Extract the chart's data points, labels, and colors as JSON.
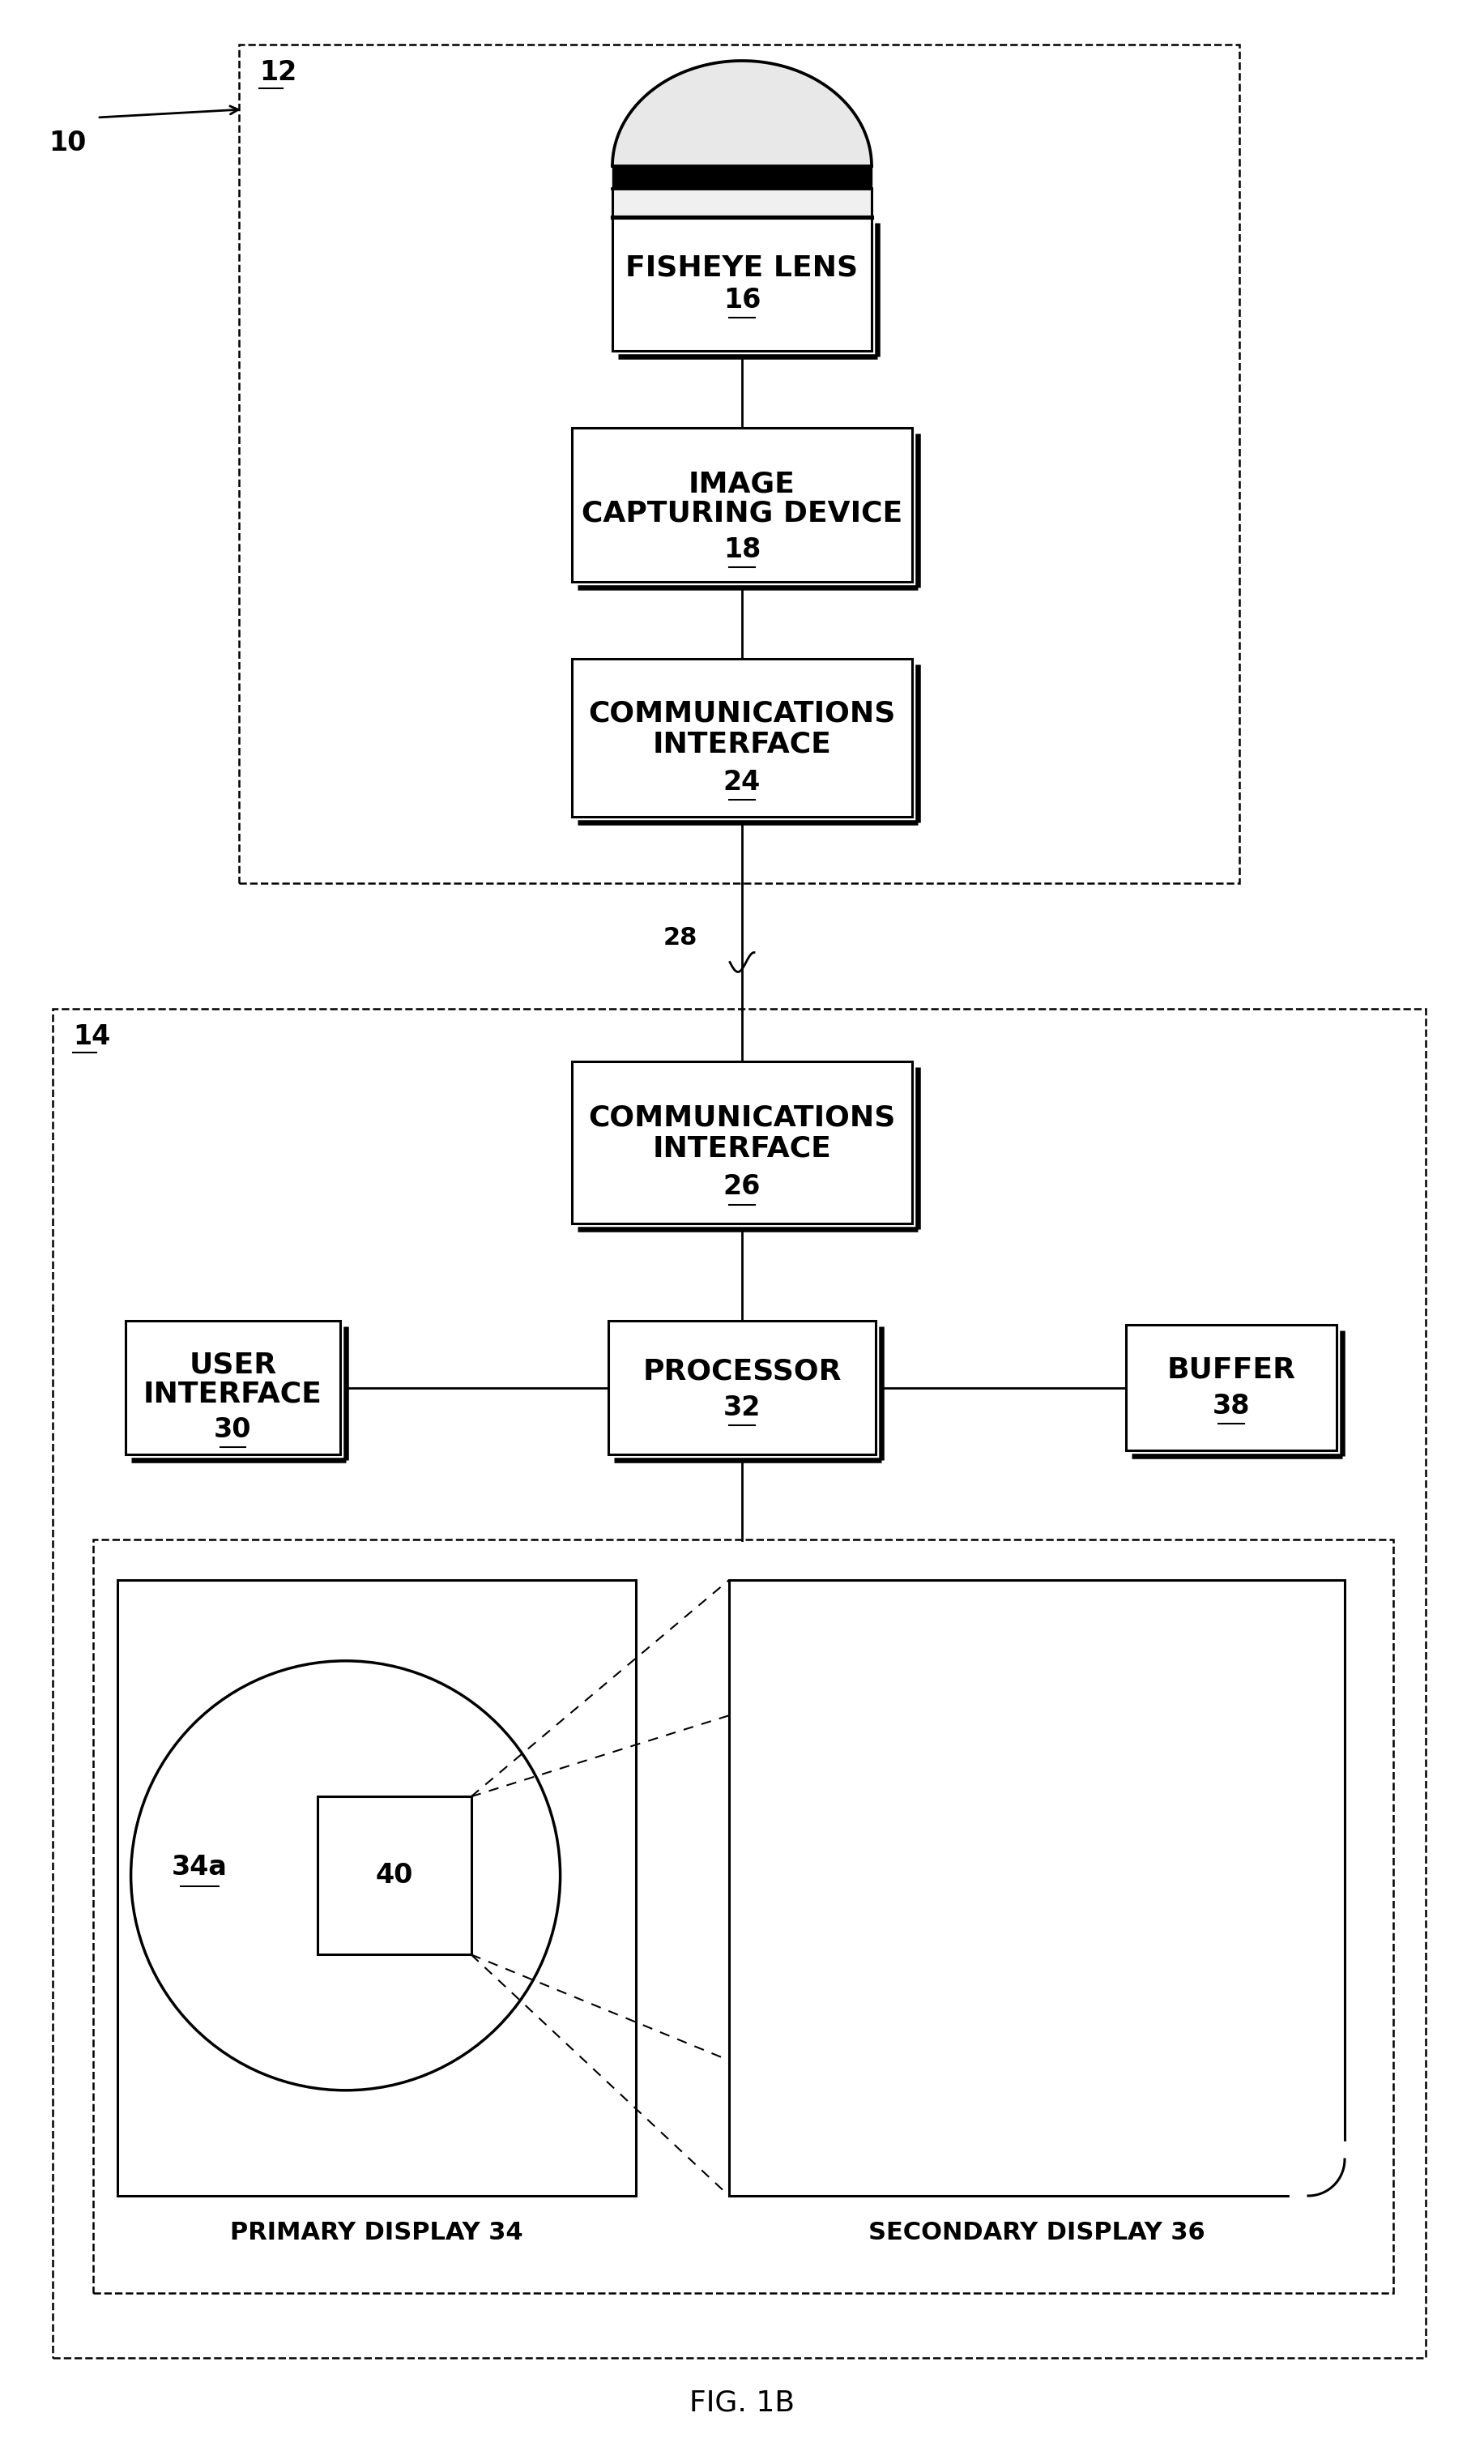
{
  "title": "FIG. 1B",
  "bg_color": "#ffffff",
  "fig_label": "10",
  "box12_label": "12",
  "box14_label": "14",
  "fisheye_text1": "FISHEYE LENS",
  "fisheye_text2": "16",
  "icd_text1": "IMAGE",
  "icd_text2": "CAPTURING DEVICE",
  "icd_text3": "18",
  "ci24_text1": "COMMUNICATIONS",
  "ci24_text2": "INTERFACE",
  "ci24_text3": "24",
  "ci26_text1": "COMMUNICATIONS",
  "ci26_text2": "INTERFACE",
  "ci26_text3": "26",
  "ui_text1": "USER",
  "ui_text2": "INTERFACE",
  "ui_text3": "30",
  "proc_text1": "PROCESSOR",
  "proc_text2": "32",
  "buf_text1": "BUFFER",
  "buf_text2": "38",
  "pd_label": "PRIMARY DISPLAY 34",
  "sd_label": "SECONDARY DISPLAY 36",
  "label_34a": "34a",
  "label_40": "40",
  "wire_28": "28"
}
